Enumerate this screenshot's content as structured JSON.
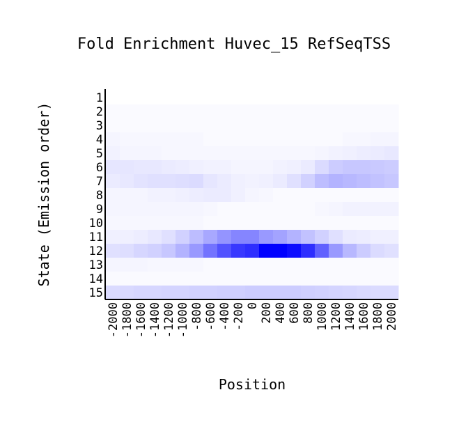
{
  "chart_data": {
    "type": "heatmap",
    "title": "Fold Enrichment Huvec_15 RefSeqTSS",
    "xlabel": "Position",
    "ylabel": "State (Emission order)",
    "x_ticks": [
      "-2000",
      "-1800",
      "-1600",
      "-1400",
      "-1200",
      "-1000",
      "-800",
      "-600",
      "-400",
      "-200",
      "0",
      "200",
      "400",
      "600",
      "800",
      "1000",
      "1200",
      "1400",
      "1600",
      "1800",
      "2000"
    ],
    "y_ticks": [
      "1",
      "2",
      "3",
      "4",
      "5",
      "6",
      "7",
      "8",
      "9",
      "10",
      "11",
      "12",
      "13",
      "14",
      "15"
    ],
    "colormap": {
      "low": "#ffffff",
      "high": "#0000ff"
    },
    "scale_note": "cell values are relative color intensity (0 = white, 1 = full blue)",
    "values": [
      [
        0.0,
        0.0,
        0.0,
        0.0,
        0.0,
        0.0,
        0.0,
        0.0,
        0.0,
        0.0,
        0.0,
        0.0,
        0.0,
        0.0,
        0.0,
        0.0,
        0.0,
        0.0,
        0.0,
        0.0,
        0.0
      ],
      [
        0.02,
        0.02,
        0.02,
        0.02,
        0.02,
        0.02,
        0.02,
        0.02,
        0.02,
        0.02,
        0.02,
        0.02,
        0.02,
        0.02,
        0.02,
        0.02,
        0.02,
        0.02,
        0.02,
        0.02,
        0.02
      ],
      [
        0.02,
        0.02,
        0.02,
        0.02,
        0.02,
        0.02,
        0.02,
        0.02,
        0.02,
        0.02,
        0.02,
        0.02,
        0.02,
        0.02,
        0.02,
        0.02,
        0.02,
        0.02,
        0.02,
        0.02,
        0.02
      ],
      [
        0.04,
        0.03,
        0.03,
        0.03,
        0.03,
        0.03,
        0.03,
        0.02,
        0.02,
        0.02,
        0.02,
        0.02,
        0.02,
        0.02,
        0.02,
        0.02,
        0.02,
        0.03,
        0.03,
        0.04,
        0.04
      ],
      [
        0.05,
        0.04,
        0.04,
        0.04,
        0.03,
        0.03,
        0.03,
        0.03,
        0.03,
        0.03,
        0.03,
        0.03,
        0.03,
        0.03,
        0.03,
        0.04,
        0.05,
        0.06,
        0.07,
        0.08,
        0.09
      ],
      [
        0.1,
        0.1,
        0.09,
        0.09,
        0.08,
        0.07,
        0.06,
        0.05,
        0.05,
        0.04,
        0.04,
        0.04,
        0.05,
        0.06,
        0.08,
        0.14,
        0.2,
        0.22,
        0.22,
        0.21,
        0.2
      ],
      [
        0.08,
        0.09,
        0.11,
        0.12,
        0.12,
        0.13,
        0.14,
        0.1,
        0.08,
        0.06,
        0.05,
        0.06,
        0.08,
        0.12,
        0.18,
        0.26,
        0.3,
        0.28,
        0.26,
        0.24,
        0.22
      ],
      [
        0.04,
        0.04,
        0.04,
        0.05,
        0.05,
        0.06,
        0.07,
        0.08,
        0.08,
        0.06,
        0.04,
        0.03,
        0.02,
        0.02,
        0.02,
        0.02,
        0.02,
        0.02,
        0.02,
        0.02,
        0.02
      ],
      [
        0.04,
        0.04,
        0.04,
        0.04,
        0.04,
        0.04,
        0.04,
        0.03,
        0.02,
        0.02,
        0.02,
        0.02,
        0.02,
        0.02,
        0.02,
        0.03,
        0.04,
        0.05,
        0.05,
        0.05,
        0.05
      ],
      [
        0.03,
        0.03,
        0.03,
        0.03,
        0.03,
        0.03,
        0.03,
        0.02,
        0.02,
        0.02,
        0.02,
        0.02,
        0.02,
        0.02,
        0.02,
        0.02,
        0.02,
        0.02,
        0.02,
        0.02,
        0.02
      ],
      [
        0.06,
        0.06,
        0.07,
        0.09,
        0.12,
        0.18,
        0.26,
        0.34,
        0.42,
        0.48,
        0.48,
        0.4,
        0.36,
        0.3,
        0.24,
        0.18,
        0.12,
        0.08,
        0.07,
        0.06,
        0.06
      ],
      [
        0.12,
        0.13,
        0.16,
        0.18,
        0.22,
        0.3,
        0.4,
        0.55,
        0.68,
        0.78,
        0.82,
        1.0,
        1.0,
        0.95,
        0.82,
        0.62,
        0.4,
        0.28,
        0.2,
        0.14,
        0.12
      ],
      [
        0.04,
        0.04,
        0.04,
        0.03,
        0.03,
        0.03,
        0.03,
        0.02,
        0.02,
        0.02,
        0.02,
        0.02,
        0.02,
        0.02,
        0.02,
        0.02,
        0.02,
        0.02,
        0.02,
        0.02,
        0.02
      ],
      [
        0.02,
        0.02,
        0.02,
        0.02,
        0.02,
        0.02,
        0.02,
        0.02,
        0.02,
        0.02,
        0.02,
        0.02,
        0.02,
        0.02,
        0.02,
        0.02,
        0.02,
        0.02,
        0.02,
        0.02,
        0.02
      ],
      [
        0.14,
        0.15,
        0.16,
        0.16,
        0.17,
        0.17,
        0.18,
        0.18,
        0.19,
        0.19,
        0.2,
        0.2,
        0.2,
        0.2,
        0.19,
        0.18,
        0.17,
        0.16,
        0.15,
        0.14,
        0.14
      ]
    ]
  }
}
